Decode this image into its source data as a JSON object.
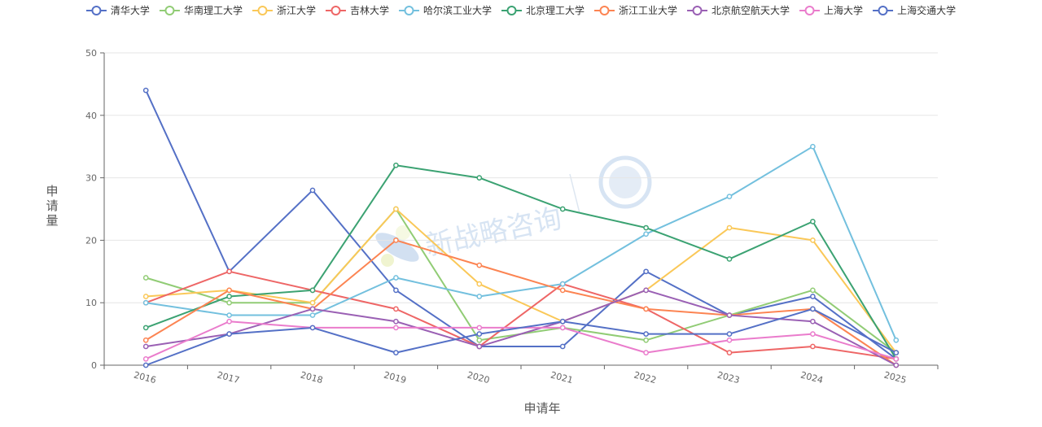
{
  "chart_data": {
    "type": "line",
    "xlabel": "申请年",
    "ylabel": "申请量",
    "ylim": [
      0,
      50
    ],
    "yticks": [
      0,
      10,
      20,
      30,
      40,
      50
    ],
    "grid": true,
    "legend_position": "top",
    "categories": [
      "2016",
      "2017",
      "2018",
      "2019",
      "2020",
      "2021",
      "2022",
      "2023",
      "2024",
      "2025"
    ],
    "series": [
      {
        "name": "清华大学",
        "color": "#5470c6",
        "values": [
          44,
          15,
          28,
          12,
          3,
          3,
          15,
          8,
          11,
          1
        ]
      },
      {
        "name": "华南理工大学",
        "color": "#91cc75",
        "values": [
          14,
          10,
          10,
          25,
          4,
          6,
          4,
          8,
          12,
          2
        ]
      },
      {
        "name": "浙江大学",
        "color": "#fac858",
        "values": [
          11,
          12,
          10,
          25,
          13,
          7,
          12,
          22,
          20,
          2
        ]
      },
      {
        "name": "吉林大学",
        "color": "#ee6666",
        "values": [
          10,
          15,
          12,
          9,
          3,
          13,
          9,
          2,
          3,
          1
        ]
      },
      {
        "name": "哈尔滨工业大学",
        "color": "#73c0de",
        "values": [
          10,
          8,
          8,
          14,
          11,
          13,
          21,
          27,
          35,
          4
        ]
      },
      {
        "name": "北京理工大学",
        "color": "#3ba272",
        "values": [
          6,
          11,
          12,
          32,
          30,
          25,
          22,
          17,
          23,
          1
        ]
      },
      {
        "name": "浙江工业大学",
        "color": "#fc8452",
        "values": [
          4,
          12,
          9,
          20,
          16,
          12,
          9,
          8,
          9,
          0
        ]
      },
      {
        "name": "北京航空航天大学",
        "color": "#9a60b4",
        "values": [
          3,
          5,
          9,
          7,
          3,
          7,
          12,
          8,
          7,
          0
        ]
      },
      {
        "name": "上海大学",
        "color": "#ea7ccc",
        "values": [
          1,
          7,
          6,
          6,
          6,
          6,
          2,
          4,
          5,
          1
        ]
      },
      {
        "name": "上海交通大学",
        "color": "#5470c6",
        "values": [
          0,
          5,
          6,
          2,
          5,
          7,
          5,
          5,
          9,
          2
        ]
      }
    ]
  }
}
